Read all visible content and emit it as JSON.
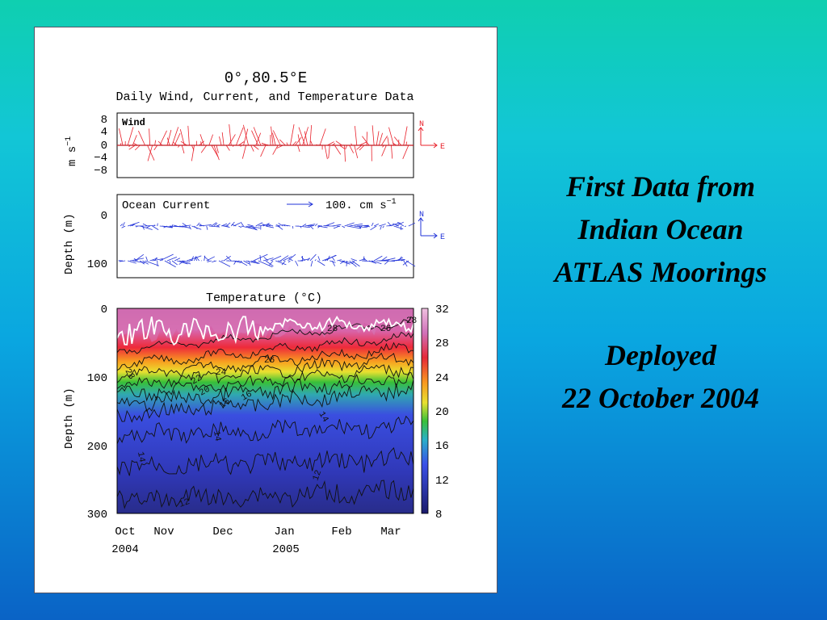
{
  "figure": {
    "title": "0°,80.5°E",
    "subtitle": "Daily Wind, Current, and Temperature Data",
    "wind": {
      "label": "Wind",
      "ylabel_main": "m s",
      "ylabel_exp": "−1",
      "yticks": [
        "8",
        "4",
        "0",
        "−4",
        "−8"
      ],
      "compass_n": "N",
      "compass_e": "E",
      "color": "#e8202a"
    },
    "current": {
      "label": "Ocean Current",
      "scale_text": "100. cm s",
      "scale_exp": "−1",
      "ylabel": "Depth (m)",
      "yticks": [
        "0",
        "100"
      ],
      "compass_n": "N",
      "compass_e": "E",
      "color": "#2233d8"
    },
    "temperature": {
      "label": "Temperature (°C)",
      "ylabel": "Depth (m)",
      "yticks": [
        "0",
        "100",
        "200",
        "300"
      ],
      "colorbar_ticks": [
        "32",
        "28",
        "24",
        "20",
        "16",
        "12",
        "8"
      ],
      "contour_labels": [
        "28",
        "26",
        "24",
        "28",
        "22",
        "20",
        "16",
        "16",
        "14",
        "14",
        "14",
        "12",
        "12",
        "26",
        "28"
      ]
    },
    "x_months": [
      "Oct",
      "Nov",
      "Dec",
      "Jan",
      "Feb",
      "Mar"
    ],
    "x_years": [
      "2004",
      "2005"
    ]
  },
  "side_text": {
    "line1": "First Data from",
    "line2": "Indian Ocean",
    "line3": "ATLAS Moorings",
    "line4": "Deployed",
    "line5": "22 October 2004"
  }
}
